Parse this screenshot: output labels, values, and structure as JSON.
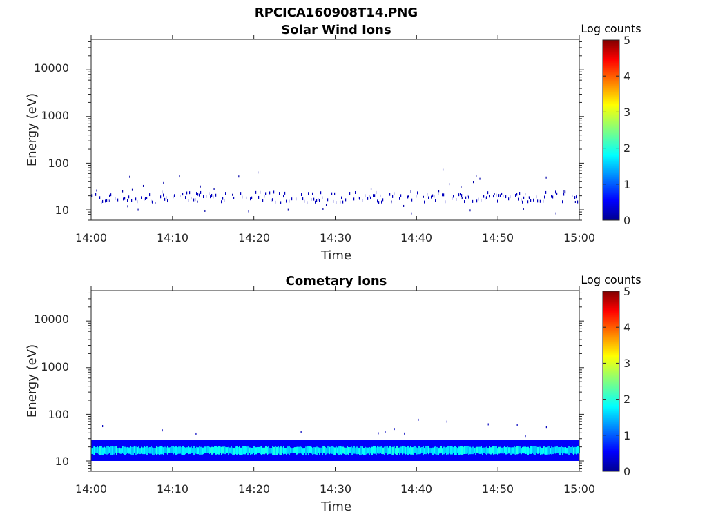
{
  "figure_title": "RPCICA160908T14.PNG",
  "chart_data": [
    {
      "type": "heatmap",
      "title": "Solar Wind Ions",
      "xlabel": "Time",
      "ylabel": "Energy (eV)",
      "x_ticks": [
        "14:00",
        "14:10",
        "14:20",
        "14:30",
        "14:40",
        "14:50",
        "15:00"
      ],
      "x_range": [
        "14:00",
        "15:00"
      ],
      "y_scale": "log",
      "y_ticks": [
        "10",
        "100",
        "1000",
        "10000"
      ],
      "y_range": [
        6,
        45000
      ],
      "colorbar": {
        "label": "Log counts",
        "ticks": [
          "0",
          "1",
          "2",
          "3",
          "4",
          "5"
        ],
        "range": [
          0,
          5
        ],
        "colormap": "jet"
      },
      "description_values": {
        "sparse_counts_band_eV": [
          14,
          24
        ],
        "typical_log_counts": 0.3,
        "scattered_points_eV": [
          8,
          75
        ]
      }
    },
    {
      "type": "heatmap",
      "title": "Cometary Ions",
      "xlabel": "Time",
      "ylabel": "Energy (eV)",
      "x_ticks": [
        "14:00",
        "14:10",
        "14:20",
        "14:30",
        "14:40",
        "14:50",
        "15:00"
      ],
      "x_range": [
        "14:00",
        "15:00"
      ],
      "y_scale": "log",
      "y_ticks": [
        "10",
        "100",
        "1000",
        "10000"
      ],
      "y_range": [
        6,
        45000
      ],
      "colorbar": {
        "label": "Log counts",
        "ticks": [
          "0",
          "1",
          "2",
          "3",
          "4",
          "5"
        ],
        "range": [
          0,
          5
        ],
        "colormap": "jet"
      },
      "description_values": {
        "dense_band_eV": [
          10,
          28
        ],
        "peak_band_eV": [
          14,
          20
        ],
        "peak_log_counts": 1.8,
        "edge_log_counts": 0.6
      }
    }
  ]
}
